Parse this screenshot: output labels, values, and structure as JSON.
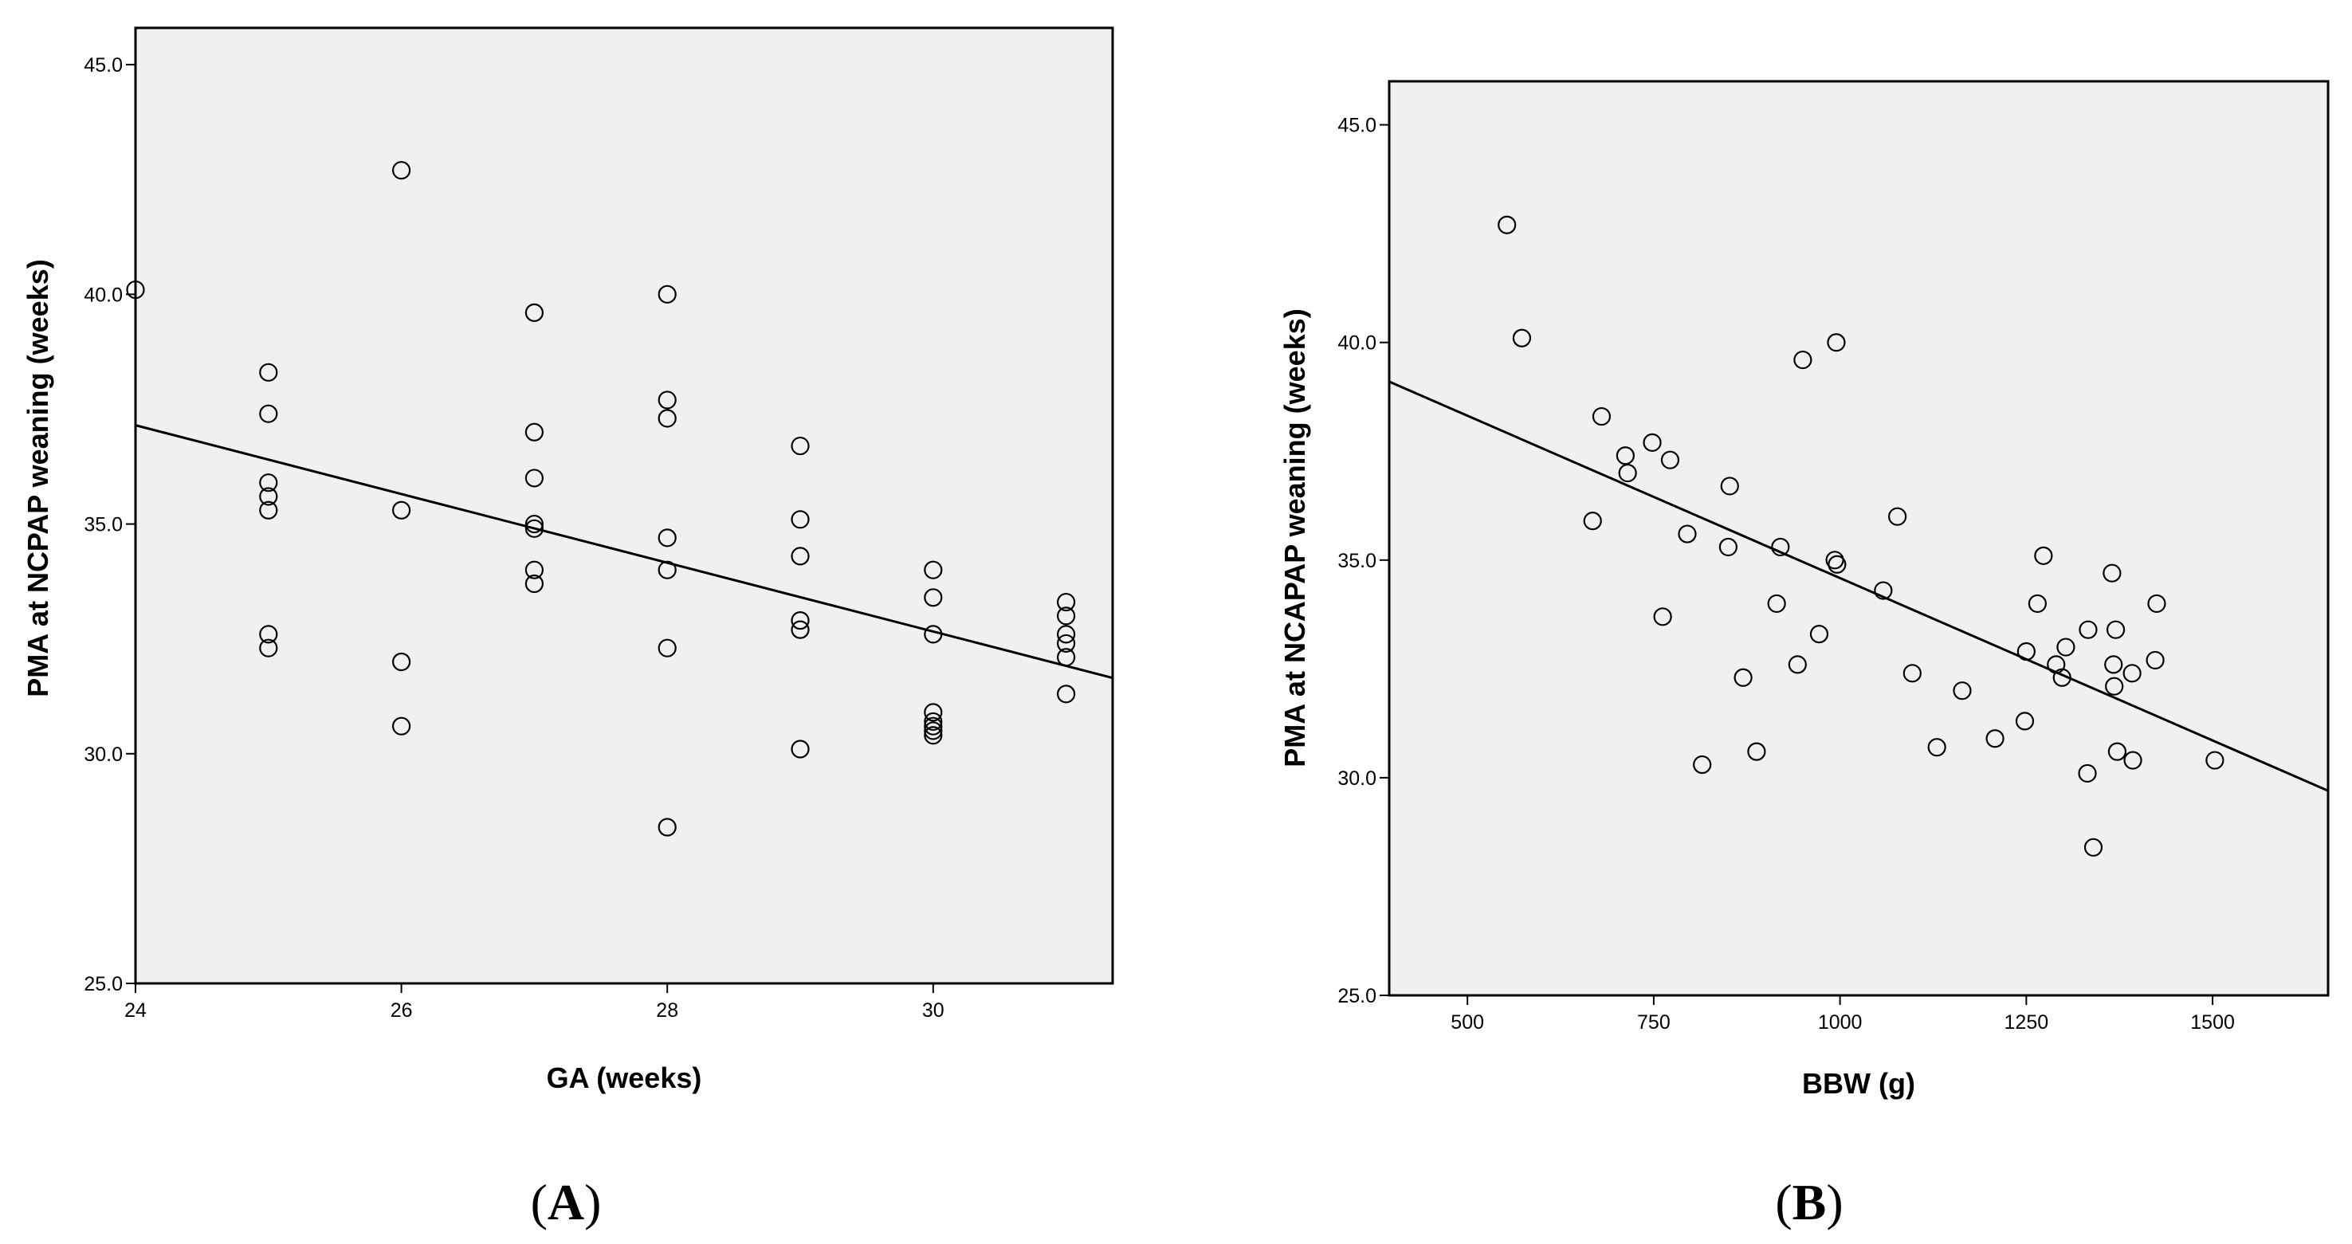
{
  "chart_data": [
    {
      "type": "scatter",
      "panel_label": "A",
      "xlabel": "GA (weeks)",
      "ylabel": "PMA at NCPAP weaning (weeks)",
      "xlim": [
        24,
        31.35
      ],
      "ylim": [
        25,
        45.8
      ],
      "xticks": [
        24,
        26,
        28,
        30
      ],
      "yticks": [
        25.0,
        30.0,
        35.0,
        40.0,
        45.0
      ],
      "points": [
        {
          "x": 24,
          "y": 40.1
        },
        {
          "x": 25,
          "y": 38.3
        },
        {
          "x": 25,
          "y": 37.4
        },
        {
          "x": 25,
          "y": 35.9
        },
        {
          "x": 25,
          "y": 35.6
        },
        {
          "x": 25,
          "y": 35.3
        },
        {
          "x": 25,
          "y": 32.6
        },
        {
          "x": 25,
          "y": 32.3
        },
        {
          "x": 26,
          "y": 42.7
        },
        {
          "x": 26,
          "y": 35.3
        },
        {
          "x": 26,
          "y": 32.0
        },
        {
          "x": 26,
          "y": 30.6
        },
        {
          "x": 27,
          "y": 39.6
        },
        {
          "x": 27,
          "y": 37.0
        },
        {
          "x": 27,
          "y": 36.0
        },
        {
          "x": 27,
          "y": 35.0
        },
        {
          "x": 27,
          "y": 34.9
        },
        {
          "x": 27,
          "y": 34.0
        },
        {
          "x": 27,
          "y": 33.7
        },
        {
          "x": 28,
          "y": 40.0
        },
        {
          "x": 28,
          "y": 37.7
        },
        {
          "x": 28,
          "y": 37.3
        },
        {
          "x": 28,
          "y": 34.7
        },
        {
          "x": 28,
          "y": 34.0
        },
        {
          "x": 28,
          "y": 32.3
        },
        {
          "x": 28,
          "y": 28.4
        },
        {
          "x": 29,
          "y": 36.7
        },
        {
          "x": 29,
          "y": 35.1
        },
        {
          "x": 29,
          "y": 34.3
        },
        {
          "x": 29,
          "y": 32.9
        },
        {
          "x": 29,
          "y": 32.7
        },
        {
          "x": 29,
          "y": 30.1
        },
        {
          "x": 30,
          "y": 34.0
        },
        {
          "x": 30,
          "y": 33.4
        },
        {
          "x": 30,
          "y": 32.6
        },
        {
          "x": 30,
          "y": 30.9
        },
        {
          "x": 30,
          "y": 30.7
        },
        {
          "x": 30,
          "y": 30.6
        },
        {
          "x": 30,
          "y": 30.5
        },
        {
          "x": 30,
          "y": 30.4
        },
        {
          "x": 31,
          "y": 33.3
        },
        {
          "x": 31,
          "y": 33.0
        },
        {
          "x": 31,
          "y": 32.6
        },
        {
          "x": 31,
          "y": 32.4
        },
        {
          "x": 31,
          "y": 32.1
        },
        {
          "x": 31,
          "y": 31.3
        }
      ],
      "fit_line": {
        "x0": 24,
        "y0": 37.15,
        "x1": 31.35,
        "y1": 31.65
      }
    },
    {
      "type": "scatter",
      "panel_label": "B",
      "xlabel": "BBW (g)",
      "ylabel": "PMA at NCAPAP weaning (weeks)",
      "xlim": [
        395,
        1655
      ],
      "ylim": [
        25,
        46
      ],
      "xticks": [
        500,
        750,
        1000,
        1250,
        1500
      ],
      "yticks": [
        25.0,
        30.0,
        35.0,
        40.0,
        45.0
      ],
      "points": [
        {
          "x": 553,
          "y": 42.7
        },
        {
          "x": 573,
          "y": 40.1
        },
        {
          "x": 668,
          "y": 35.9
        },
        {
          "x": 680,
          "y": 38.3
        },
        {
          "x": 712,
          "y": 37.4
        },
        {
          "x": 715,
          "y": 37.0
        },
        {
          "x": 748,
          "y": 37.7
        },
        {
          "x": 762,
          "y": 33.7
        },
        {
          "x": 772,
          "y": 37.3
        },
        {
          "x": 795,
          "y": 35.6
        },
        {
          "x": 815,
          "y": 30.3
        },
        {
          "x": 850,
          "y": 35.3
        },
        {
          "x": 852,
          "y": 36.7
        },
        {
          "x": 870,
          "y": 32.3
        },
        {
          "x": 888,
          "y": 30.6
        },
        {
          "x": 915,
          "y": 34.0
        },
        {
          "x": 920,
          "y": 35.3
        },
        {
          "x": 943,
          "y": 32.6
        },
        {
          "x": 950,
          "y": 39.6
        },
        {
          "x": 972,
          "y": 33.3
        },
        {
          "x": 993,
          "y": 35.0
        },
        {
          "x": 995,
          "y": 40.0
        },
        {
          "x": 996,
          "y": 34.9
        },
        {
          "x": 1058,
          "y": 34.3
        },
        {
          "x": 1077,
          "y": 36.0
        },
        {
          "x": 1097,
          "y": 32.4
        },
        {
          "x": 1130,
          "y": 30.7
        },
        {
          "x": 1164,
          "y": 32.0
        },
        {
          "x": 1208,
          "y": 30.9
        },
        {
          "x": 1248,
          "y": 31.3
        },
        {
          "x": 1250,
          "y": 32.9
        },
        {
          "x": 1265,
          "y": 34.0
        },
        {
          "x": 1273,
          "y": 35.1
        },
        {
          "x": 1290,
          "y": 32.6
        },
        {
          "x": 1298,
          "y": 32.3
        },
        {
          "x": 1303,
          "y": 33.0
        },
        {
          "x": 1332,
          "y": 30.1
        },
        {
          "x": 1333,
          "y": 33.4
        },
        {
          "x": 1340,
          "y": 28.4
        },
        {
          "x": 1365,
          "y": 34.7
        },
        {
          "x": 1367,
          "y": 32.6
        },
        {
          "x": 1368,
          "y": 32.1
        },
        {
          "x": 1370,
          "y": 33.4
        },
        {
          "x": 1372,
          "y": 30.6
        },
        {
          "x": 1392,
          "y": 32.4
        },
        {
          "x": 1393,
          "y": 30.4
        },
        {
          "x": 1423,
          "y": 32.7
        },
        {
          "x": 1425,
          "y": 34.0
        },
        {
          "x": 1503,
          "y": 30.4
        }
      ],
      "fit_line": {
        "x0": 395,
        "y0": 39.1,
        "x1": 1655,
        "y1": 29.7
      }
    }
  ]
}
